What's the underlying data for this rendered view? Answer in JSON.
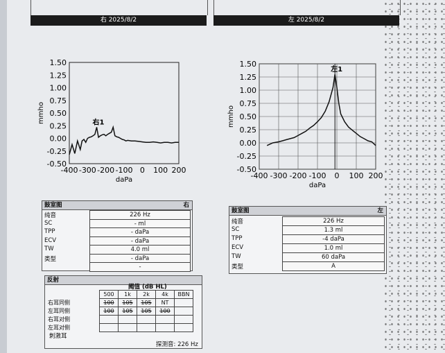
{
  "right_ear": {
    "header": "右 2025/8/2",
    "chart_data": {
      "type": "line",
      "title": "",
      "xlabel": "daPa",
      "ylabel": "mmho",
      "xlim": [
        -400,
        200
      ],
      "ylim": [
        -0.5,
        1.5
      ],
      "x_ticks": [
        "-400",
        "-300",
        "-200",
        "-100",
        "0",
        "100",
        "200"
      ],
      "y_ticks": [
        "1.50",
        "1.25",
        "1.00",
        "0.75",
        "0.50",
        "0.25",
        "0.00",
        "-0.25",
        "-0.50"
      ],
      "grid": false,
      "annotation": "右1",
      "x": [
        -400,
        -385,
        -370,
        -355,
        -340,
        -330,
        -320,
        -310,
        -300,
        -290,
        -280,
        -270,
        -260,
        -250,
        -240,
        -230,
        -220,
        -210,
        -200,
        -190,
        -180,
        -170,
        -160,
        -150,
        -140,
        -130,
        -120,
        -110,
        -100,
        -90,
        -80,
        -60,
        -40,
        -20,
        0,
        20,
        40,
        60,
        80,
        100,
        120,
        140,
        160,
        180,
        200
      ],
      "y": [
        -0.32,
        -0.12,
        -0.3,
        -0.05,
        -0.22,
        -0.05,
        -0.02,
        -0.08,
        0.0,
        0.02,
        0.03,
        0.05,
        0.08,
        0.22,
        0.02,
        0.05,
        0.07,
        0.08,
        0.05,
        0.08,
        0.1,
        0.12,
        0.22,
        0.05,
        0.03,
        0.02,
        0.0,
        -0.02,
        -0.03,
        -0.05,
        -0.04,
        -0.05,
        -0.05,
        -0.06,
        -0.07,
        -0.08,
        -0.08,
        -0.07,
        -0.08,
        -0.09,
        -0.08,
        -0.08,
        -0.09,
        -0.08,
        -0.08
      ]
    },
    "table": {
      "title": "鼓室图",
      "ear": "右",
      "rows": [
        {
          "label": "纯音",
          "value": "226 Hz"
        },
        {
          "label": "SC",
          "value": "- ml"
        },
        {
          "label": "TPP",
          "value": "- daPa"
        },
        {
          "label": "ECV",
          "value": "- daPa"
        },
        {
          "label": "TW",
          "value": "4.0 ml"
        },
        {
          "label": "类型",
          "value": "- daPa"
        },
        {
          "label": "",
          "value": "-"
        }
      ]
    }
  },
  "left_ear": {
    "header": "左 2025/8/2",
    "chart_data": {
      "type": "line",
      "title": "",
      "xlabel": "daPa",
      "ylabel": "mmho",
      "xlim": [
        -400,
        200
      ],
      "ylim": [
        -0.5,
        1.5
      ],
      "x_ticks": [
        "-400",
        "-300",
        "-200",
        "-100",
        "0",
        "100",
        "200"
      ],
      "y_ticks": [
        "1.50",
        "1.25",
        "1.00",
        "0.75",
        "0.50",
        "0.25",
        "0.00",
        "-0.25",
        "-0.50"
      ],
      "grid": true,
      "annotation": "左1",
      "x": [
        -360,
        -330,
        -300,
        -280,
        -260,
        -240,
        -220,
        -200,
        -180,
        -160,
        -140,
        -120,
        -100,
        -80,
        -60,
        -40,
        -20,
        -10,
        0,
        10,
        20,
        40,
        60,
        80,
        100,
        120,
        140,
        160,
        180,
        200
      ],
      "y": [
        -0.05,
        0.0,
        0.02,
        0.04,
        0.06,
        0.08,
        0.1,
        0.14,
        0.18,
        0.22,
        0.28,
        0.33,
        0.4,
        0.48,
        0.6,
        0.78,
        1.05,
        1.3,
        1.05,
        0.75,
        0.55,
        0.4,
        0.3,
        0.24,
        0.18,
        0.12,
        0.08,
        0.04,
        0.02,
        -0.05
      ]
    },
    "table": {
      "title": "鼓室图",
      "ear": "左",
      "rows": [
        {
          "label": "纯音",
          "value": "226 Hz"
        },
        {
          "label": "SC",
          "value": "1.3 ml"
        },
        {
          "label": "TPP",
          "value": "-4 daPa"
        },
        {
          "label": "ECV",
          "value": "1.0 ml"
        },
        {
          "label": "TW",
          "value": "60 daPa"
        },
        {
          "label": "类型",
          "value": "A"
        }
      ]
    }
  },
  "reflex": {
    "title": "反射",
    "subtitle": "阈值 (dB HL)",
    "columns": [
      "500",
      "1k",
      "2k",
      "4k",
      "BBN"
    ],
    "rows": [
      {
        "label": "右耳同侧",
        "values": [
          "100",
          "105",
          "105",
          "NT",
          ""
        ],
        "struck": [
          true,
          true,
          true,
          false,
          false
        ]
      },
      {
        "label": "左耳同侧",
        "values": [
          "100",
          "105",
          "105",
          "100",
          ""
        ],
        "struck": [
          true,
          true,
          true,
          true,
          false
        ]
      },
      {
        "label": "右耳对侧",
        "values": [
          "",
          "",
          "",
          "",
          ""
        ],
        "struck": [
          false,
          false,
          false,
          false,
          false
        ]
      },
      {
        "label": "左耳对侧",
        "values": [
          "",
          "",
          "",
          "",
          ""
        ],
        "struck": [
          false,
          false,
          false,
          false,
          false
        ]
      }
    ],
    "footer_left": "刺激耳",
    "footer_right": "探测音: 226 Hz"
  }
}
